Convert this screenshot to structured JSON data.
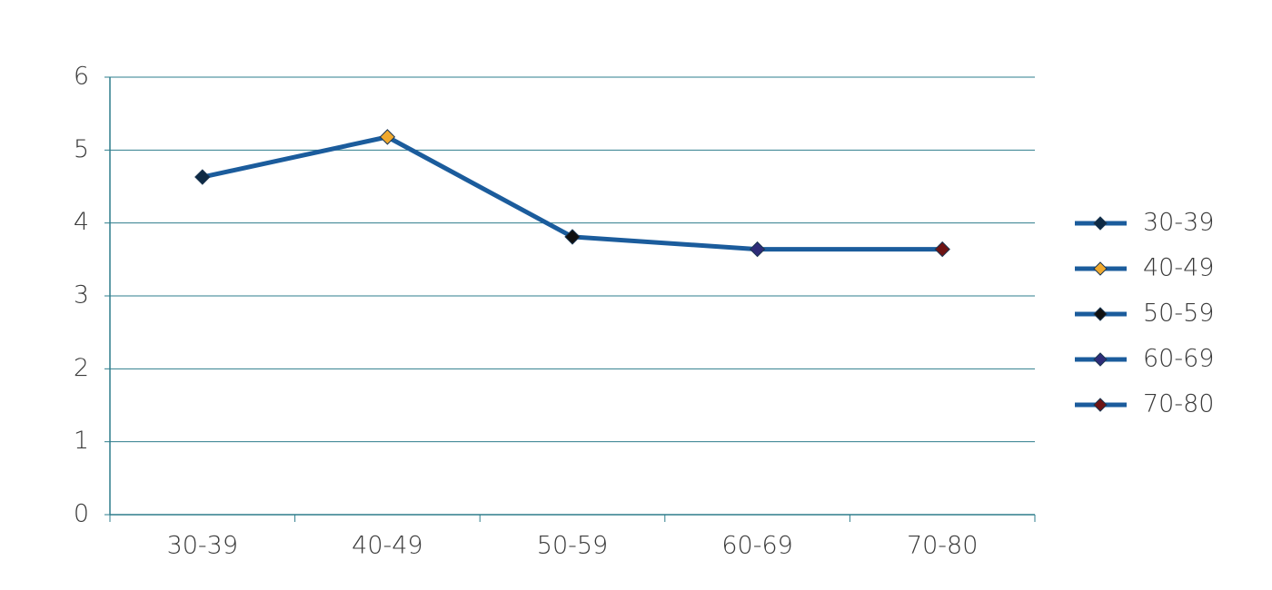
{
  "chart_data": {
    "type": "line",
    "categories": [
      "30-39",
      "40-49",
      "50-59",
      "60-69",
      "70-80"
    ],
    "values": [
      4.63,
      5.18,
      3.81,
      3.64,
      3.64
    ],
    "color": "#1b5c9c",
    "point_colors": [
      "#0e2a44",
      "#f0a92e",
      "#101010",
      "#2e2c78",
      "#6e1414"
    ],
    "ylim": [
      0,
      6
    ],
    "yticks": [
      0,
      1,
      2,
      3,
      4,
      5,
      6
    ],
    "grid": true,
    "grid_color": "#2e7d8c",
    "legend": "right"
  }
}
